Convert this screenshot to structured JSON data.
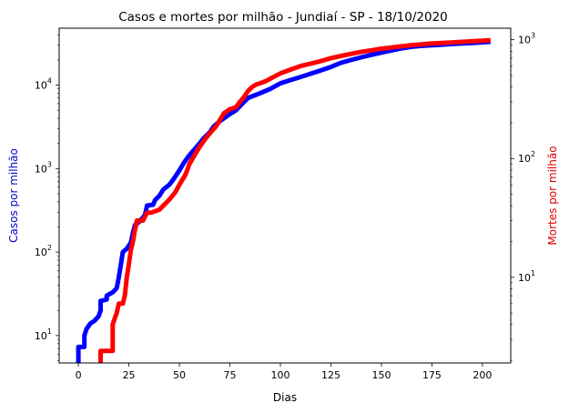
{
  "chart_data": {
    "type": "line",
    "title": "Casos e mortes por milhão - Jundiaí - SP - 18/10/2020",
    "xlabel": "Dias",
    "ylabel_left": "Casos por milhão",
    "ylabel_right": "Mortes por milhão",
    "xlim": [
      -9.5,
      214
    ],
    "xticks": [
      0,
      25,
      50,
      75,
      100,
      125,
      150,
      175,
      200
    ],
    "yscale_left": "log",
    "yscale_right": "log",
    "ylim_left": [
      4.7,
      48000
    ],
    "ylim_right": [
      1.9,
      1250
    ],
    "yticks_left": [
      {
        "value": 10,
        "base": "10",
        "exp": "1"
      },
      {
        "value": 100,
        "base": "10",
        "exp": "2"
      },
      {
        "value": 1000,
        "base": "10",
        "exp": "3"
      },
      {
        "value": 10000,
        "base": "10",
        "exp": "4"
      }
    ],
    "yticks_right": [
      {
        "value": 10,
        "base": "10",
        "exp": "1"
      },
      {
        "value": 100,
        "base": "10",
        "exp": "2"
      },
      {
        "value": 1000,
        "base": "10",
        "exp": "3"
      }
    ],
    "grid": false,
    "series": [
      {
        "name": "Casos",
        "axis": "left",
        "color": "#0000ff",
        "points": [
          [
            0,
            4.5
          ],
          [
            0,
            7.3
          ],
          [
            3,
            7.3
          ],
          [
            3,
            10
          ],
          [
            4,
            12
          ],
          [
            6,
            14
          ],
          [
            8,
            15
          ],
          [
            10,
            17
          ],
          [
            11,
            20
          ],
          [
            11,
            26
          ],
          [
            14,
            27
          ],
          [
            14,
            30
          ],
          [
            17,
            33
          ],
          [
            19,
            37
          ],
          [
            20,
            50
          ],
          [
            21,
            70
          ],
          [
            22,
            100
          ],
          [
            24,
            110
          ],
          [
            26,
            130
          ],
          [
            27,
            170
          ],
          [
            28,
            210
          ],
          [
            30,
            230
          ],
          [
            32,
            260
          ],
          [
            33,
            280
          ],
          [
            34,
            360
          ],
          [
            37,
            370
          ],
          [
            38,
            420
          ],
          [
            40,
            470
          ],
          [
            42,
            560
          ],
          [
            45,
            640
          ],
          [
            47,
            740
          ],
          [
            50,
            950
          ],
          [
            52,
            1150
          ],
          [
            55,
            1450
          ],
          [
            57,
            1650
          ],
          [
            60,
            2000
          ],
          [
            62,
            2300
          ],
          [
            65,
            2700
          ],
          [
            67,
            3200
          ],
          [
            70,
            3700
          ],
          [
            72,
            4000
          ],
          [
            75,
            4500
          ],
          [
            78,
            5000
          ],
          [
            80,
            5600
          ],
          [
            82,
            6300
          ],
          [
            84,
            7000
          ],
          [
            87,
            7500
          ],
          [
            90,
            8000
          ],
          [
            95,
            9000
          ],
          [
            100,
            10500
          ],
          [
            105,
            11500
          ],
          [
            110,
            12500
          ],
          [
            115,
            13700
          ],
          [
            120,
            15000
          ],
          [
            125,
            16500
          ],
          [
            130,
            18500
          ],
          [
            135,
            20000
          ],
          [
            140,
            21500
          ],
          [
            145,
            23000
          ],
          [
            150,
            24500
          ],
          [
            155,
            26000
          ],
          [
            160,
            27500
          ],
          [
            165,
            28800
          ],
          [
            170,
            29500
          ],
          [
            175,
            30000
          ],
          [
            180,
            30500
          ],
          [
            185,
            31000
          ],
          [
            190,
            31500
          ],
          [
            195,
            32000
          ],
          [
            200,
            32500
          ],
          [
            204,
            33000
          ]
        ]
      },
      {
        "name": "Mortes",
        "axis": "right",
        "color": "#ff0000",
        "points": [
          [
            11,
            1.5
          ],
          [
            11,
            2.4
          ],
          [
            17,
            2.4
          ],
          [
            17,
            4
          ],
          [
            18,
            4.5
          ],
          [
            19,
            5
          ],
          [
            20,
            6
          ],
          [
            22,
            6
          ],
          [
            23,
            7
          ],
          [
            24,
            10
          ],
          [
            25,
            13
          ],
          [
            26,
            17
          ],
          [
            27,
            20
          ],
          [
            28,
            25
          ],
          [
            29,
            30
          ],
          [
            31,
            30
          ],
          [
            32,
            30
          ],
          [
            34,
            35
          ],
          [
            36,
            35
          ],
          [
            38,
            36
          ],
          [
            40,
            37
          ],
          [
            42,
            40
          ],
          [
            45,
            45
          ],
          [
            48,
            52
          ],
          [
            50,
            60
          ],
          [
            53,
            73
          ],
          [
            55,
            90
          ],
          [
            58,
            110
          ],
          [
            60,
            125
          ],
          [
            62,
            140
          ],
          [
            64,
            155
          ],
          [
            66,
            170
          ],
          [
            68,
            185
          ],
          [
            70,
            210
          ],
          [
            72,
            240
          ],
          [
            75,
            260
          ],
          [
            78,
            270
          ],
          [
            80,
            300
          ],
          [
            82,
            330
          ],
          [
            84,
            370
          ],
          [
            86,
            400
          ],
          [
            88,
            420
          ],
          [
            90,
            430
          ],
          [
            93,
            450
          ],
          [
            96,
            480
          ],
          [
            100,
            520
          ],
          [
            105,
            560
          ],
          [
            110,
            600
          ],
          [
            115,
            630
          ],
          [
            120,
            660
          ],
          [
            125,
            700
          ],
          [
            130,
            730
          ],
          [
            135,
            760
          ],
          [
            140,
            790
          ],
          [
            145,
            815
          ],
          [
            150,
            840
          ],
          [
            155,
            860
          ],
          [
            160,
            880
          ],
          [
            165,
            900
          ],
          [
            170,
            915
          ],
          [
            175,
            930
          ],
          [
            180,
            940
          ],
          [
            185,
            950
          ],
          [
            190,
            960
          ],
          [
            195,
            970
          ],
          [
            200,
            980
          ],
          [
            204,
            990
          ]
        ]
      }
    ]
  }
}
